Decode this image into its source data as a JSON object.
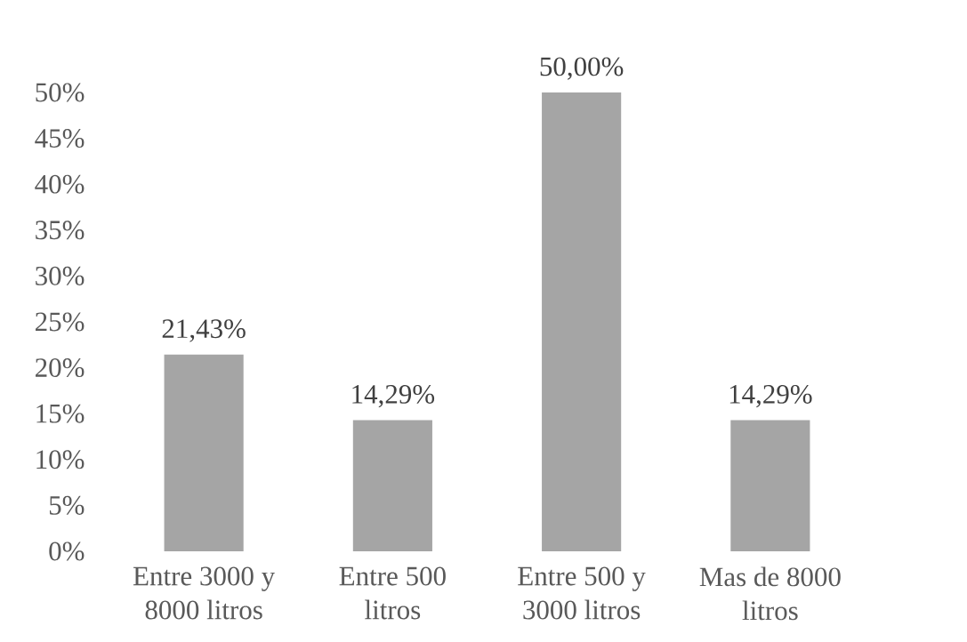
{
  "chart_data": {
    "type": "bar",
    "categories": [
      "Entre 3000 y 8000 litros",
      "Entre 500 litros",
      "Entre 500 y 3000 litros",
      "Mas de 8000 litros"
    ],
    "values": [
      21.43,
      14.29,
      50.0,
      14.29
    ],
    "color": "#a5a5a5",
    "value_labels": [
      "21,43%",
      "14,29%",
      "50,00%",
      "14,29%"
    ],
    "ylim": [
      0,
      50
    ],
    "yticks": [
      {
        "value": 0,
        "label": "0%"
      },
      {
        "value": 5,
        "label": "5%"
      },
      {
        "value": 10,
        "label": "10%"
      },
      {
        "value": 15,
        "label": "15%"
      },
      {
        "value": 20,
        "label": "20%"
      },
      {
        "value": 25,
        "label": "25%"
      },
      {
        "value": 30,
        "label": "30%"
      },
      {
        "value": 35,
        "label": "35%"
      },
      {
        "value": 40,
        "label": "40%"
      },
      {
        "value": 45,
        "label": "45%"
      },
      {
        "value": 50,
        "label": "50%"
      }
    ]
  }
}
